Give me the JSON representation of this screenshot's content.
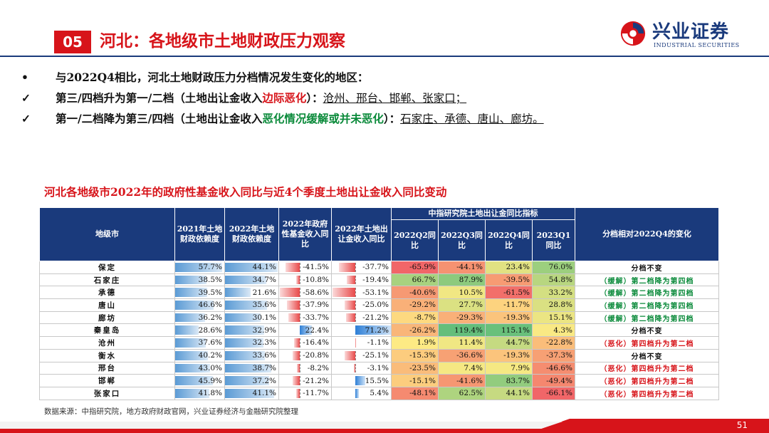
{
  "header": {
    "section_number": "05",
    "title": "河北：各地级市土地财政压力观察",
    "logo_cn": "兴业证券",
    "logo_en": "INDUSTRIAL SECURITIES"
  },
  "bullets": [
    {
      "mark": "•",
      "text": "与2022Q4相比，河北土地财政压力分档情况发生变化的地区："
    },
    {
      "mark": "✓",
      "pre": "第三/四档升为第一/二档（土地出让金收入",
      "highlight": "边际恶化",
      "mid": "）：",
      "places": "沧州、邢台、邯郸、张家口；"
    },
    {
      "mark": "✓",
      "pre": "第一/二档降为第三/四档（土地出让金收入",
      "highlight": "恶化情况缓解或并未恶化",
      "mid": "）：",
      "places": "石家庄、承德、唐山、廊坊。"
    }
  ],
  "table": {
    "title": "河北各地级市2022年的政府性基金收入同比与近4个季度土地出让金收入同比变动",
    "headers": {
      "city": "地级市",
      "dep2021": "2021年土地财政依赖度",
      "dep2022": "2022年土地财政依赖度",
      "fund2022": "2022年政府性基金收入同比",
      "land2022": "2022年土地出让金收入同比",
      "group": "中指研究院土地出让金同比指标",
      "q22q2": "2022Q2同比",
      "q22q3": "2022Q3同比",
      "q22q4": "2022Q4同比",
      "q23q1": "2023Q1同比",
      "change": "分档相对2022Q4的变化"
    },
    "rows": [
      {
        "city": "保定",
        "dep2021": 57.7,
        "dep2022": 44.1,
        "fund2022": -41.5,
        "land2022": -37.7,
        "q22q2": -65.9,
        "q22q3": -44.1,
        "q22q4": 23.4,
        "q23q1": 76.0,
        "change": "分档不变",
        "tag": "none"
      },
      {
        "city": "石家庄",
        "dep2021": 38.5,
        "dep2022": 34.7,
        "fund2022": -10.8,
        "land2022": -19.4,
        "q22q2": 66.7,
        "q22q3": 87.9,
        "q22q4": -39.5,
        "q23q1": 54.8,
        "change": "（缓解）第二档降为第四档",
        "tag": "ease"
      },
      {
        "city": "承德",
        "dep2021": 39.5,
        "dep2022": 21.6,
        "fund2022": -58.6,
        "land2022": -53.1,
        "q22q2": -40.6,
        "q22q3": 10.5,
        "q22q4": -61.5,
        "q23q1": 33.2,
        "change": "（缓解）第二档降为第四档",
        "tag": "ease"
      },
      {
        "city": "唐山",
        "dep2021": 46.6,
        "dep2022": 35.6,
        "fund2022": -37.9,
        "land2022": -25.0,
        "q22q2": -29.2,
        "q22q3": 27.7,
        "q22q4": -11.7,
        "q23q1": 28.8,
        "change": "（缓解）第二档降为第四档",
        "tag": "ease"
      },
      {
        "city": "廊坊",
        "dep2021": 36.2,
        "dep2022": 30.1,
        "fund2022": -33.7,
        "land2022": -21.2,
        "q22q2": -8.7,
        "q22q3": -29.3,
        "q22q4": -19.3,
        "q23q1": 15.1,
        "change": "（缓解）第二档降为第四档",
        "tag": "ease"
      },
      {
        "city": "秦皇岛",
        "dep2021": 28.6,
        "dep2022": 32.9,
        "fund2022": 22.4,
        "land2022": 71.2,
        "q22q2": -26.2,
        "q22q3": 119.4,
        "q22q4": 115.1,
        "q23q1": 4.3,
        "change": "分档不变",
        "tag": "none"
      },
      {
        "city": "沧州",
        "dep2021": 37.6,
        "dep2022": 32.3,
        "fund2022": -16.4,
        "land2022": -1.1,
        "q22q2": 1.9,
        "q22q3": 11.4,
        "q22q4": 44.7,
        "q23q1": -22.8,
        "change": "（恶化）第四档升为第二档",
        "tag": "worse"
      },
      {
        "city": "衡水",
        "dep2021": 40.2,
        "dep2022": 33.6,
        "fund2022": -20.8,
        "land2022": -25.1,
        "q22q2": -15.3,
        "q22q3": -36.6,
        "q22q4": -19.3,
        "q23q1": -37.3,
        "change": "分档不变",
        "tag": "none"
      },
      {
        "city": "邢台",
        "dep2021": 43.0,
        "dep2022": 38.7,
        "fund2022": -8.2,
        "land2022": -3.1,
        "q22q2": -23.5,
        "q22q3": 7.4,
        "q22q4": 7.9,
        "q23q1": -46.6,
        "change": "（恶化）第四档升为第二档",
        "tag": "worse"
      },
      {
        "city": "邯郸",
        "dep2021": 45.9,
        "dep2022": 37.2,
        "fund2022": -21.2,
        "land2022": 15.5,
        "q22q2": -15.1,
        "q22q3": -41.6,
        "q22q4": 83.7,
        "q23q1": -49.4,
        "change": "（恶化）第四档升为第二档",
        "tag": "worse"
      },
      {
        "city": "张家口",
        "dep2021": 41.8,
        "dep2022": 41.1,
        "fund2022": -11.7,
        "land2022": 5.4,
        "q22q2": -48.1,
        "q22q3": 62.5,
        "q22q4": 44.1,
        "q23q1": -66.1,
        "change": "（恶化）第四档升为第二档",
        "tag": "worse"
      }
    ]
  },
  "source": "数据来源：中指研究院，地方政府财政官网，兴业证券经济与金融研究院整理",
  "page_number": "51",
  "colors": {
    "brand_red": "#d7141a",
    "brand_navy": "#1a3a7c",
    "ease_green": "#0a8a3a",
    "bar_blue": "#5b9bd5",
    "bar_red": "#e84a4a"
  }
}
